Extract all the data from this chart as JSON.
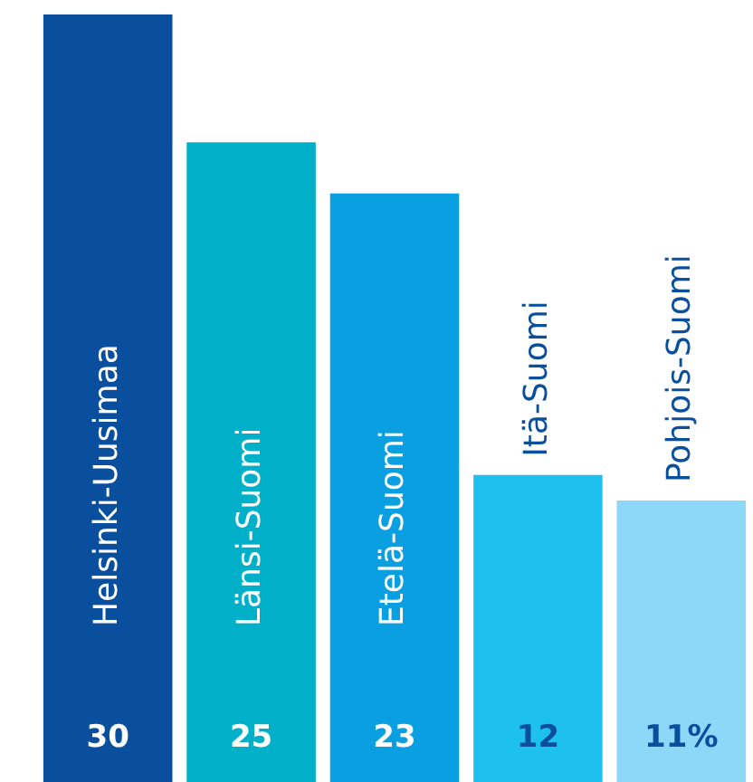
{
  "chart_data": {
    "type": "bar",
    "categories": [
      "Helsinki-Uusimaa",
      "Länsi-Suomi",
      "Etelä-Suomi",
      "Itä-Suomi",
      "Pohjois-Suomi"
    ],
    "values": [
      30,
      25,
      23,
      12,
      11
    ],
    "colors": [
      "#0a4f9e",
      "#00b0c8",
      "#0a9fe0",
      "#1ec0f0",
      "#8dd8f8"
    ],
    "value_labels": [
      "30",
      "25",
      "23",
      "12",
      "11%"
    ],
    "ylim": [
      0,
      30
    ],
    "tick_labels": false
  }
}
